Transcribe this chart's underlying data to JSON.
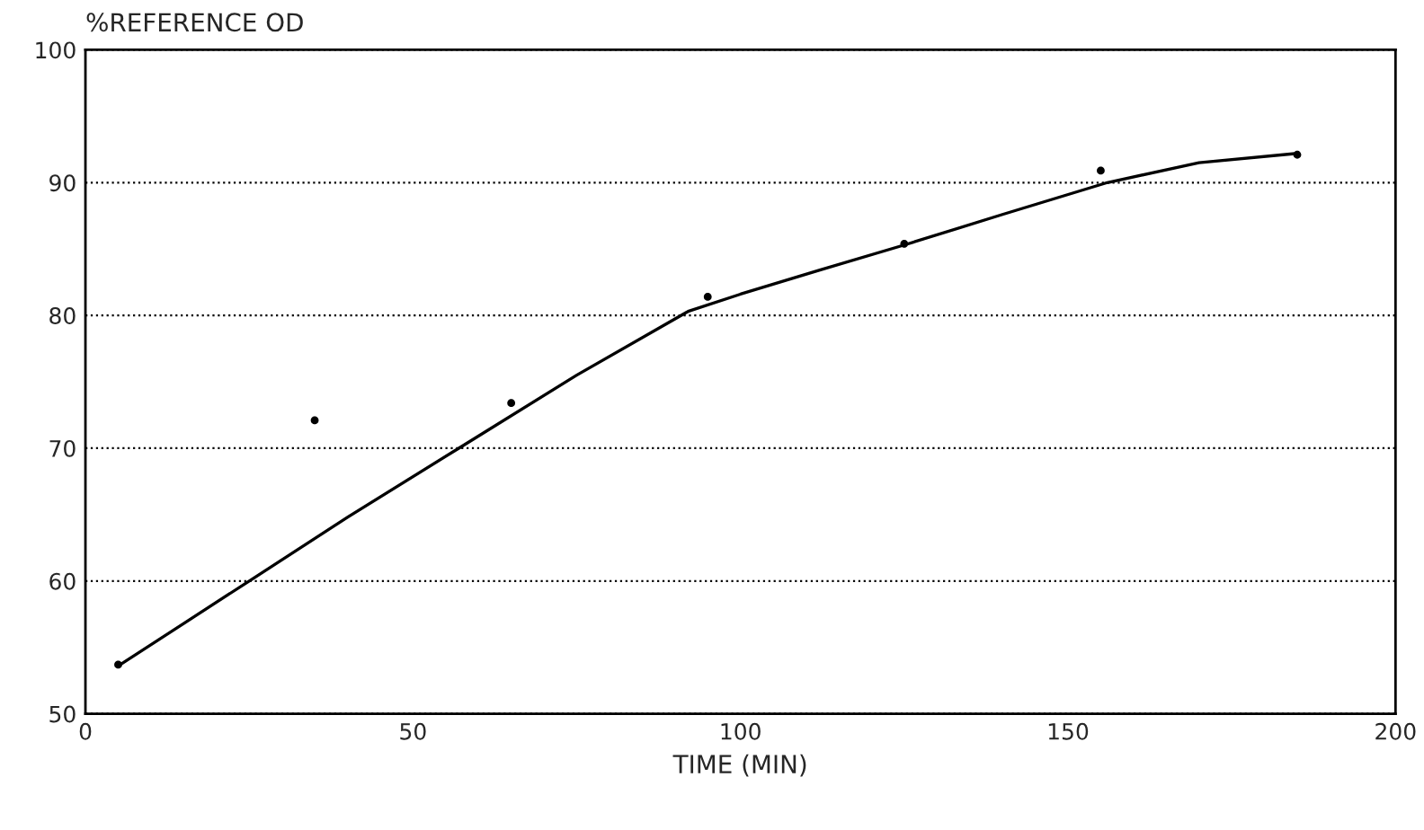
{
  "chart_data": {
    "type": "scatter",
    "ylabel": "%REFERENCE OD",
    "xlabel": "TIME (MIN)",
    "xlim": [
      0,
      200
    ],
    "xticks": [
      0,
      50,
      100,
      150,
      200
    ],
    "ylim": [
      50,
      100
    ],
    "yticks": [
      50,
      60,
      70,
      80,
      90,
      100
    ],
    "grid": "y",
    "marker": "circle",
    "series": [
      {
        "color": "#000000",
        "x": [
          5,
          35,
          65,
          95,
          125,
          155,
          185
        ],
        "values": [
          53.7,
          72.1,
          73.4,
          81.4,
          85.4,
          90.9,
          92.1
        ]
      },
      {
        "type": "line",
        "color": "#000000",
        "line_style": "solid",
        "marker": "none",
        "x": [
          5,
          15,
          25,
          40,
          57,
          75,
          92,
          100,
          112,
          125,
          140,
          156,
          170,
          185
        ],
        "values": [
          53.6,
          56.8,
          60,
          64.8,
          70,
          75.5,
          80.3,
          81.6,
          83.4,
          85.3,
          87.6,
          90,
          91.5,
          92.2
        ]
      }
    ]
  }
}
